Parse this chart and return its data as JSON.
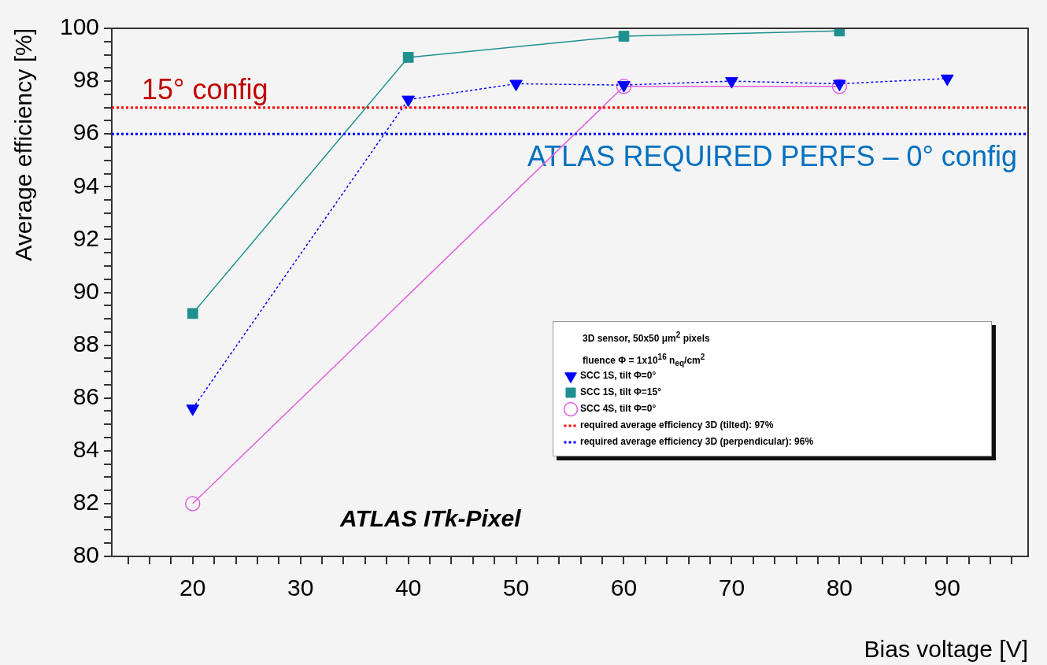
{
  "chart_data": {
    "type": "line",
    "xlabel": "Bias voltage [V]",
    "ylabel": "Average efficiency [%]",
    "legend_title": "3D sensor, 50x50 μm$^{2}$ pixels\nfluence Φ = 1x10$^{16}$ n$_{eq}$/cm$^{2}$",
    "xlim": [
      12.5,
      97.5
    ],
    "ylim": [
      80,
      100
    ],
    "xticks": [
      {
        "value": 14,
        "label": null
      },
      {
        "value": 16,
        "label": null
      },
      {
        "value": 18,
        "label": null
      },
      20,
      {
        "value": 22,
        "label": null
      },
      {
        "value": 24,
        "label": null
      },
      {
        "value": 26,
        "label": null
      },
      {
        "value": 28,
        "label": null
      },
      30,
      {
        "value": 32,
        "label": null
      },
      {
        "value": 34,
        "label": null
      },
      {
        "value": 36,
        "label": null
      },
      {
        "value": 38,
        "label": null
      },
      40,
      {
        "value": 42,
        "label": null
      },
      {
        "value": 44,
        "label": null
      },
      {
        "value": 46,
        "label": null
      },
      {
        "value": 48,
        "label": null
      },
      50,
      {
        "value": 52,
        "label": null
      },
      {
        "value": 54,
        "label": null
      },
      {
        "value": 56,
        "label": null
      },
      {
        "value": 58,
        "label": null
      },
      60,
      {
        "value": 62,
        "label": null
      },
      {
        "value": 64,
        "label": null
      },
      {
        "value": 66,
        "label": null
      },
      {
        "value": 68,
        "label": null
      },
      70,
      {
        "value": 72,
        "label": null
      },
      {
        "value": 74,
        "label": null
      },
      {
        "value": 76,
        "label": null
      },
      {
        "value": 78,
        "label": null
      },
      80,
      {
        "value": 82,
        "label": null
      },
      {
        "value": 84,
        "label": null
      },
      {
        "value": 86,
        "label": null
      },
      {
        "value": 88,
        "label": null
      },
      90,
      {
        "value": 92,
        "label": null
      },
      {
        "value": 94,
        "label": null
      },
      {
        "value": 96,
        "label": null
      }
    ],
    "yticks": [
      80,
      {
        "value": 80.5,
        "label": null
      },
      {
        "value": 81,
        "label": null
      },
      {
        "value": 81.5,
        "label": null
      },
      82,
      {
        "value": 82.5,
        "label": null
      },
      {
        "value": 83,
        "label": null
      },
      {
        "value": 83.5,
        "label": null
      },
      84,
      {
        "value": 84.5,
        "label": null
      },
      {
        "value": 85,
        "label": null
      },
      {
        "value": 85.5,
        "label": null
      },
      86,
      {
        "value": 86.5,
        "label": null
      },
      {
        "value": 87,
        "label": null
      },
      {
        "value": 87.5,
        "label": null
      },
      88,
      {
        "value": 88.5,
        "label": null
      },
      {
        "value": 89,
        "label": null
      },
      {
        "value": 89.5,
        "label": null
      },
      90,
      {
        "value": 90.5,
        "label": null
      },
      {
        "value": 91,
        "label": null
      },
      {
        "value": 91.5,
        "label": null
      },
      92,
      {
        "value": 92.5,
        "label": null
      },
      {
        "value": 93,
        "label": null
      },
      {
        "value": 93.5,
        "label": null
      },
      94,
      {
        "value": 94.5,
        "label": null
      },
      {
        "value": 95,
        "label": null
      },
      {
        "value": 95.5,
        "label": null
      },
      96,
      {
        "value": 96.5,
        "label": null
      },
      {
        "value": 97,
        "label": null
      },
      {
        "value": 97.5,
        "label": null
      },
      98,
      {
        "value": 98.5,
        "label": null
      },
      {
        "value": 99,
        "label": null
      },
      {
        "value": 99.5,
        "label": null
      },
      100
    ],
    "series": [
      {
        "name": "SCC 1S, tilt Φ=0°",
        "color": "#0000ff",
        "marker": "triangle",
        "line_style": "dotted",
        "x": [
          20,
          40,
          50,
          60,
          70,
          80,
          90
        ],
        "values": [
          85.6,
          97.3,
          97.9,
          97.85,
          98.0,
          97.9,
          98.1
        ]
      },
      {
        "name": "SCC 1S, tilt Φ=15°",
        "color": "#1f9090",
        "marker": "square",
        "line_style": "solid",
        "x": [
          20,
          40,
          60,
          80
        ],
        "values": [
          89.2,
          98.9,
          99.7,
          99.9
        ]
      },
      {
        "name": "SCC 4S, tilt Φ=0°",
        "color": "#e060e0",
        "marker": "circle",
        "line_style": "solid",
        "x": [
          20,
          60,
          80
        ],
        "values": [
          82.0,
          97.8,
          97.8
        ]
      }
    ],
    "ref_lines": [
      {
        "axis": "y",
        "value": 97,
        "label": "required average efficiency 3D (tilted): 97%",
        "color": "#ff0000",
        "line_style": "dotted"
      },
      {
        "axis": "y",
        "value": 96,
        "label": "required average efficiency 3D (perpendicular): 96%",
        "color": "#0000ff",
        "line_style": "dotted"
      }
    ],
    "annotations": [
      "15° config",
      "ATLAS REQUIRED PERFS – 0° config",
      "ATLAS ITk-Pixel"
    ],
    "legend": "bottom right",
    "grid": false
  }
}
